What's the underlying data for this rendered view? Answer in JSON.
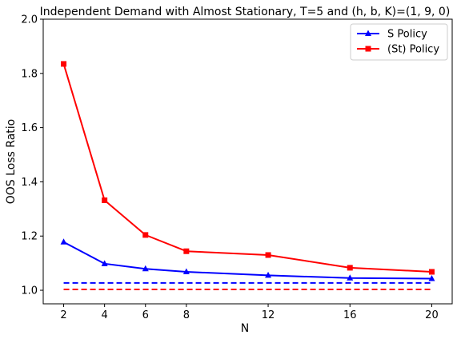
{
  "chart_data": {
    "type": "line",
    "title": "Independent Demand with Almost Stationary, T=5 and (h, b, K)=(1, 9, 0)",
    "xlabel": "N",
    "ylabel": "OOS Loss Ratio",
    "x": [
      2,
      4,
      6,
      8,
      12,
      16,
      20
    ],
    "xticks": [
      "2",
      "4",
      "6",
      "8",
      "12",
      "16",
      "20"
    ],
    "yticks": [
      "1.0",
      "1.2",
      "1.4",
      "1.6",
      "1.8",
      "2.0"
    ],
    "xlim": [
      1.0,
      21.0
    ],
    "ylim": [
      0.95,
      2.0
    ],
    "grid": false,
    "legend_position": "top-right",
    "series": [
      {
        "name": "S Policy",
        "color": "#0000ff",
        "marker": "triangle",
        "values": [
          1.178,
          1.098,
          1.079,
          1.068,
          1.055,
          1.045,
          1.043
        ]
      },
      {
        "name": "(St) Policy",
        "color": "#ff0000",
        "marker": "square",
        "values": [
          1.835,
          1.332,
          1.204,
          1.144,
          1.13,
          1.083,
          1.068
        ]
      }
    ],
    "reference_lines": [
      {
        "color": "#0000ff",
        "style": "dashed",
        "y": 1.027
      },
      {
        "color": "#ff0000",
        "style": "dashed",
        "y": 1.003
      }
    ]
  }
}
